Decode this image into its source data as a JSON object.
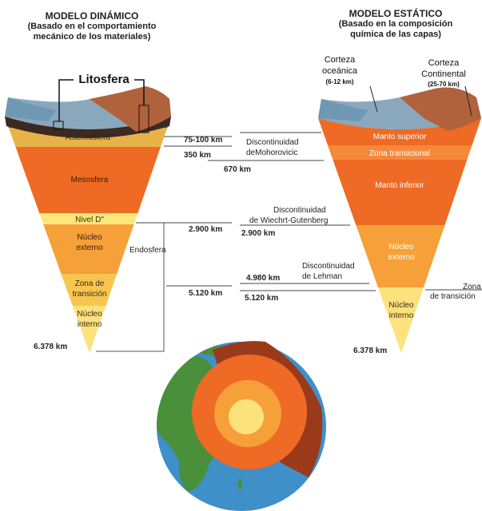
{
  "dynamic": {
    "title": "MODELO DINÁMICO",
    "subtitle_1": "(Basado en el comportamiento",
    "subtitle_2": "mecánico de los materiales)",
    "lithosphere": "Litosfera",
    "layers": {
      "asthenosphere": "Astemosfera",
      "mesosphere": "Mesosfera",
      "d_layer": "Nivel D\"",
      "outer_core_1": "Núcleo",
      "outer_core_2": "externo",
      "transition_1": "Zona de",
      "transition_2": "transición",
      "inner_core_1": "Núcleo",
      "inner_core_2": "interno"
    },
    "endosphere": "Endosfera",
    "depths": {
      "d75": "75-100 km",
      "d350": "350 km",
      "d2900": "2.900 km",
      "d5120": "5.120 km",
      "d6378": "6.378 km"
    }
  },
  "static": {
    "title": "MODELO ESTÁTICO",
    "subtitle_1": "(Basado en la composición",
    "subtitle_2": "química de las capas)",
    "oceanic_crust_1": "Corteza",
    "oceanic_crust_2": "oceánica",
    "oceanic_crust_3": "(6-12 km)",
    "continental_crust_1": "Corteza",
    "continental_crust_2": "Continental",
    "continental_crust_3": "(25-70 km)",
    "layers": {
      "upper_mantle": "Manto superior",
      "transition_zone": "Zona transicional",
      "lower_mantle": "Manto inferior",
      "outer_core_1": "Núcleo",
      "outer_core_2": "externo",
      "inner_core_1": "Núcleo",
      "inner_core_2": "interno"
    },
    "transition_label_1": "Zona",
    "transition_label_2": "de transición",
    "depths": {
      "d670": "670 km",
      "d2900": "2.900 km",
      "d4980": "4.980 km",
      "d5120": "5.120 km",
      "d6378": "6.378 km"
    }
  },
  "discontinuities": {
    "mohorovicic_1": "Discontinuidad",
    "mohorovicic_2": "deMohorovicic",
    "wiechert_1": "Discontinuidad",
    "wiechert_2": "de Wiechrt-Gutenberg",
    "lehman_1": "Discontinuidad",
    "lehman_2": "de Lehman"
  },
  "colors": {
    "crust_top": "#6e98b4",
    "crust_brown": "#b0623c",
    "asthenosphere": "#e8b24a",
    "mesosphere": "#ef6a24",
    "d_layer": "#fde77a",
    "outer_core": "#f6a03a",
    "transition": "#f8c650",
    "inner_core": "#fbe27c",
    "ocean": "#3f8fc9",
    "land": "#4a8f3a"
  }
}
